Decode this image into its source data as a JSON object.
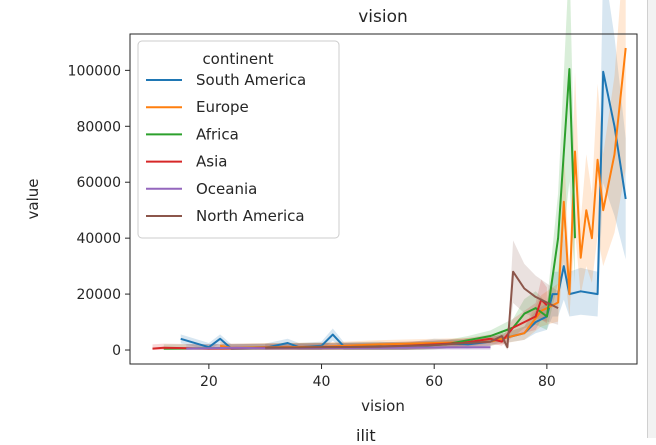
{
  "chart_data": {
    "type": "line",
    "title": "vision",
    "xlabel": "vision",
    "ylabel": "value",
    "xlim": [
      6,
      96
    ],
    "ylim": [
      -5000,
      113000
    ],
    "xticks": [
      20,
      40,
      60,
      80
    ],
    "yticks": [
      0,
      20000,
      40000,
      60000,
      80000,
      100000
    ],
    "grid": false,
    "legend": {
      "title": "continent",
      "placement": "top-left"
    },
    "series": [
      {
        "name": "South America",
        "color": "#1f77b4",
        "points": [
          [
            15,
            4000
          ],
          [
            20,
            1000
          ],
          [
            22,
            4000
          ],
          [
            24,
            500
          ],
          [
            30,
            800
          ],
          [
            34,
            2500
          ],
          [
            36,
            1000
          ],
          [
            40,
            1500
          ],
          [
            42,
            5500
          ],
          [
            44,
            1200
          ],
          [
            50,
            1500
          ],
          [
            55,
            1000
          ],
          [
            60,
            2500
          ],
          [
            66,
            2000
          ],
          [
            70,
            3000
          ],
          [
            74,
            5000
          ],
          [
            76,
            6000
          ],
          [
            78,
            10000
          ],
          [
            80,
            12000
          ],
          [
            81,
            20000
          ],
          [
            82,
            20000
          ],
          [
            83,
            30000
          ],
          [
            84,
            20000
          ],
          [
            86,
            21000
          ],
          [
            89,
            20000
          ],
          [
            90,
            99500
          ],
          [
            92,
            80000
          ],
          [
            94,
            54000
          ]
        ]
      },
      {
        "name": "Europe",
        "color": "#ff7f0e",
        "points": [
          [
            22,
            1500
          ],
          [
            24,
            800
          ],
          [
            30,
            1000
          ],
          [
            40,
            1200
          ],
          [
            50,
            2000
          ],
          [
            60,
            2500
          ],
          [
            70,
            3000
          ],
          [
            76,
            6000
          ],
          [
            79,
            14000
          ],
          [
            80,
            15000
          ],
          [
            82,
            17000
          ],
          [
            83,
            53000
          ],
          [
            84,
            20000
          ],
          [
            85,
            71000
          ],
          [
            86,
            33000
          ],
          [
            87,
            50000
          ],
          [
            88,
            40000
          ],
          [
            89,
            68000
          ],
          [
            90,
            50000
          ],
          [
            92,
            70000
          ],
          [
            94,
            108000
          ]
        ]
      },
      {
        "name": "Africa",
        "color": "#2ca02c",
        "points": [
          [
            12,
            500
          ],
          [
            20,
            600
          ],
          [
            30,
            800
          ],
          [
            40,
            1000
          ],
          [
            50,
            1200
          ],
          [
            58,
            1500
          ],
          [
            62,
            2000
          ],
          [
            66,
            3500
          ],
          [
            70,
            5000
          ],
          [
            74,
            8000
          ],
          [
            76,
            13000
          ],
          [
            78,
            15000
          ],
          [
            80,
            12000
          ],
          [
            82,
            40000
          ],
          [
            84,
            100500
          ],
          [
            85,
            40000
          ]
        ]
      },
      {
        "name": "Asia",
        "color": "#d62728",
        "points": [
          [
            10,
            500
          ],
          [
            12,
            800
          ],
          [
            20,
            500
          ],
          [
            25,
            600
          ],
          [
            30,
            800
          ],
          [
            40,
            1000
          ],
          [
            50,
            1200
          ],
          [
            55,
            1500
          ],
          [
            60,
            2000
          ],
          [
            65,
            2500
          ],
          [
            70,
            4000
          ],
          [
            72,
            3000
          ],
          [
            74,
            8000
          ],
          [
            76,
            10000
          ],
          [
            78,
            12000
          ],
          [
            79,
            18000
          ],
          [
            80,
            16000
          ]
        ]
      },
      {
        "name": "Oceania",
        "color": "#9467bd",
        "points": [
          [
            16,
            500
          ],
          [
            25,
            800
          ],
          [
            30,
            600
          ],
          [
            40,
            700
          ],
          [
            50,
            800
          ],
          [
            60,
            900
          ],
          [
            70,
            1000
          ]
        ]
      },
      {
        "name": "North America",
        "color": "#8c564b",
        "points": [
          [
            30,
            800
          ],
          [
            40,
            1000
          ],
          [
            50,
            1200
          ],
          [
            60,
            1800
          ],
          [
            66,
            2500
          ],
          [
            70,
            3000
          ],
          [
            72,
            5000
          ],
          [
            73,
            1000
          ],
          [
            74,
            28000
          ],
          [
            76,
            22000
          ],
          [
            78,
            19000
          ],
          [
            80,
            17000
          ],
          [
            82,
            15000
          ]
        ]
      }
    ]
  },
  "footer": {
    "partial_text": "ilit"
  }
}
